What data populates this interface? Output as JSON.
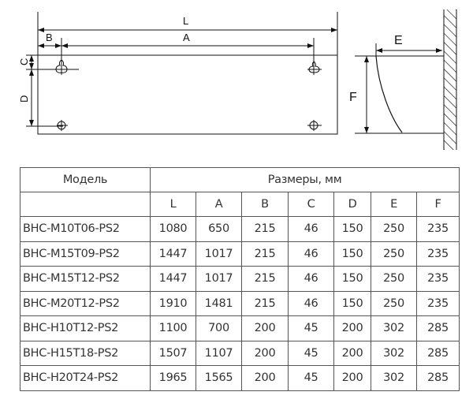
{
  "diagram": {
    "labels": {
      "L": "L",
      "A": "A",
      "B": "B",
      "C": "C",
      "D": "D",
      "E": "E",
      "F": "F"
    }
  },
  "table": {
    "model_header": "Модель",
    "dims_header": "Размеры, мм",
    "columns": [
      "L",
      "A",
      "B",
      "C",
      "D",
      "E",
      "F"
    ],
    "rows": [
      {
        "model": "BHC-M10T06-PS2",
        "values": [
          "1080",
          "650",
          "215",
          "46",
          "150",
          "250",
          "235"
        ]
      },
      {
        "model": "BHC-M15T09-PS2",
        "values": [
          "1447",
          "1017",
          "215",
          "46",
          "150",
          "250",
          "235"
        ]
      },
      {
        "model": "BHC-M15T12-PS2",
        "values": [
          "1447",
          "1017",
          "215",
          "46",
          "150",
          "250",
          "235"
        ]
      },
      {
        "model": "BHC-M20T12-PS2",
        "values": [
          "1910",
          "1481",
          "215",
          "46",
          "150",
          "250",
          "235"
        ]
      },
      {
        "model": "BHC-H10T12-PS2",
        "values": [
          "1100",
          "700",
          "200",
          "45",
          "200",
          "302",
          "285"
        ]
      },
      {
        "model": "BHC-H15T18-PS2",
        "values": [
          "1507",
          "1107",
          "200",
          "45",
          "200",
          "302",
          "285"
        ]
      },
      {
        "model": "BHC-H20T24-PS2",
        "values": [
          "1965",
          "1565",
          "200",
          "45",
          "200",
          "302",
          "285"
        ]
      }
    ]
  }
}
